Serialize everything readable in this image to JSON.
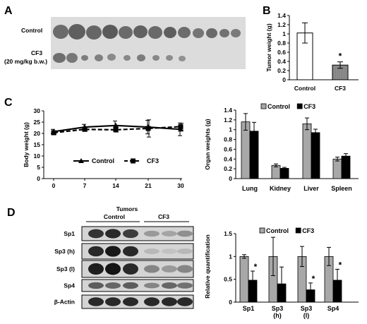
{
  "panels": {
    "A": {
      "letter": "A",
      "row_labels": [
        "Control",
        "CF3",
        "(20 mg/kg b.w.)"
      ]
    },
    "D": {
      "letter": "D",
      "header": "Tumors",
      "group_labels": [
        "Control",
        "CF3"
      ],
      "band_labels": [
        "Sp1",
        "Sp3 (h)",
        "Sp3 (l)",
        "Sp4",
        "β-Actin"
      ]
    }
  },
  "chart_data": [
    {
      "panel": "B",
      "type": "bar",
      "letter": "B",
      "categories": [
        "Control",
        "CF3"
      ],
      "values": [
        1.02,
        0.32
      ],
      "errors": [
        0.22,
        0.07
      ],
      "colors": [
        "#ffffff",
        "#8c8c8c"
      ],
      "significance": [
        "",
        "*"
      ],
      "ylabel": "Tumor weight (g)",
      "ylim": [
        0,
        1.4
      ],
      "yticks": [
        "0",
        "0.2",
        "0.4",
        "0.6",
        "0.8",
        "1",
        "1.2",
        "1.4"
      ]
    },
    {
      "panel": "C-left",
      "type": "line",
      "letter": "C",
      "x": [
        0,
        7,
        14,
        21,
        30
      ],
      "xticks": [
        "0",
        "7",
        "14",
        "21",
        "30"
      ],
      "ylabel": "Body weight (g)",
      "ylim": [
        0,
        30
      ],
      "yticks": [
        "0",
        "5",
        "10",
        "15",
        "20",
        "25",
        "30"
      ],
      "legend_position": "bottom",
      "series": [
        {
          "name": "Control",
          "values": [
            20.8,
            22.8,
            23.5,
            22.8,
            21.8
          ],
          "errors": [
            1.0,
            1.2,
            2.0,
            3.0,
            2.8
          ],
          "color": "#000000",
          "dash": "solid",
          "marker": "triangle"
        },
        {
          "name": "CF3",
          "values": [
            20.3,
            21.8,
            21.6,
            22.2,
            23.0
          ],
          "errors": [
            0.8,
            0.8,
            1.0,
            3.8,
            1.5
          ],
          "color": "#000000",
          "dash": "dashed",
          "marker": "square"
        }
      ]
    },
    {
      "panel": "C-right",
      "type": "bar",
      "categories": [
        "Lung",
        "Kidney",
        "Liver",
        "Spleen"
      ],
      "ylabel": "Organ weights (g)",
      "ylim": [
        0,
        1.4
      ],
      "yticks": [
        "0",
        "0.2",
        "0.4",
        "0.6",
        "0.8",
        "1",
        "1.2",
        "1.4"
      ],
      "legend_position": "top",
      "series": [
        {
          "name": "Control",
          "values": [
            1.16,
            0.27,
            1.12,
            0.4
          ],
          "errors": [
            0.17,
            0.03,
            0.12,
            0.04
          ],
          "color": "#a8a8a8"
        },
        {
          "name": "CF3",
          "values": [
            0.97,
            0.21,
            0.94,
            0.46
          ],
          "errors": [
            0.18,
            0.02,
            0.07,
            0.05
          ],
          "color": "#000000"
        }
      ]
    },
    {
      "panel": "D-right",
      "type": "bar",
      "categories": [
        "Sp1",
        "Sp3\n(h)",
        "Sp3\n(l)",
        "Sp4"
      ],
      "ylabel": "Relative quantification",
      "ylim": [
        0,
        1.5
      ],
      "yticks": [
        "0",
        "0.5",
        "1",
        "1.5"
      ],
      "legend_position": "top",
      "series": [
        {
          "name": "Control",
          "values": [
            1.0,
            1.0,
            1.0,
            1.0
          ],
          "errors": [
            0.04,
            0.42,
            0.22,
            0.2
          ],
          "color": "#a8a8a8"
        },
        {
          "name": "CF3",
          "values": [
            0.48,
            0.4,
            0.27,
            0.48
          ],
          "errors": [
            0.2,
            0.37,
            0.15,
            0.24
          ],
          "color": "#000000"
        }
      ],
      "significance": [
        "*",
        "",
        "*",
        "*"
      ]
    }
  ]
}
